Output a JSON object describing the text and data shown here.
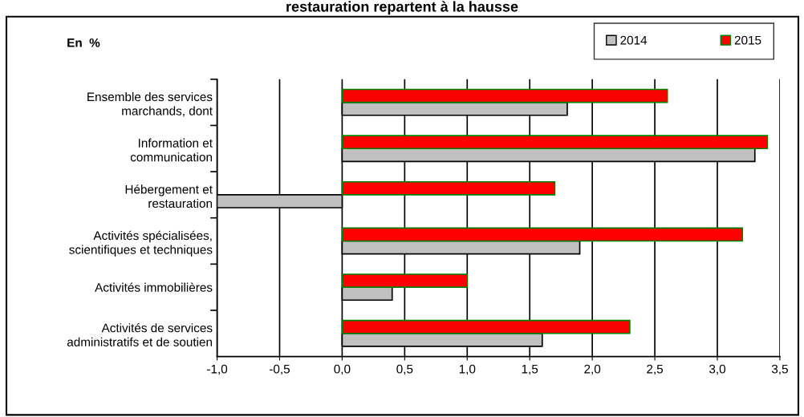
{
  "chart_data": {
    "type": "bar",
    "orientation": "horizontal",
    "title": "restauration repartent à la hausse",
    "annotations": [
      "En  %"
    ],
    "categories": [
      "Ensemble des services\nmarchands, dont",
      "Information et\ncommunication",
      "Hébergement et\nrestauration",
      "Activités spécialisées,\nscientifiques et techniques",
      "Activités immobilières",
      "Activités de services\nadministratifs et de soutien"
    ],
    "series": [
      {
        "name": "2014",
        "color": "#c0c0c0",
        "values": [
          1.8,
          3.3,
          -1.0,
          1.9,
          0.4,
          1.6
        ]
      },
      {
        "name": "2015",
        "color": "#ff0000",
        "values": [
          2.6,
          3.4,
          1.7,
          3.2,
          1.0,
          2.3
        ]
      }
    ],
    "xlim": [
      -1.0,
      3.5
    ],
    "xticks": [
      {
        "value": -1.0,
        "label": "-1,0"
      },
      {
        "value": -0.5,
        "label": "-0,5"
      },
      {
        "value": 0.0,
        "label": "0,0"
      },
      {
        "value": 0.5,
        "label": "0,5"
      },
      {
        "value": 1.0,
        "label": "1,0"
      },
      {
        "value": 1.5,
        "label": "1,5"
      },
      {
        "value": 2.0,
        "label": "2,0"
      },
      {
        "value": 2.5,
        "label": "2,5"
      },
      {
        "value": 3.0,
        "label": "3,0"
      },
      {
        "value": 3.5,
        "label": "3,5"
      }
    ],
    "grid": "x",
    "legend": "top right"
  }
}
